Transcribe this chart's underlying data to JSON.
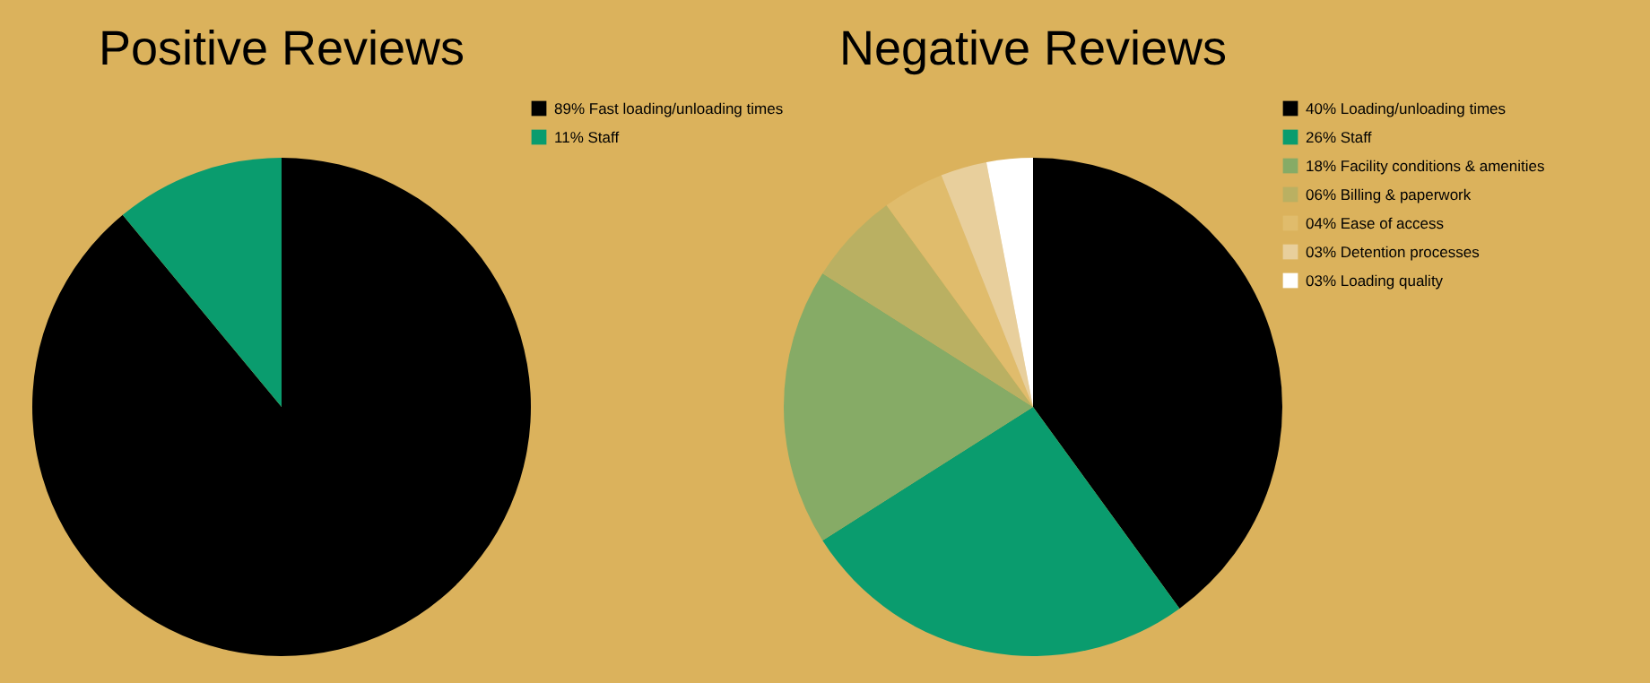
{
  "chart_data": [
    {
      "type": "pie",
      "title": "Positive Reviews",
      "categories": [
        "89% Fast loading/unloading times",
        "11% Staff"
      ],
      "values": [
        89,
        11
      ],
      "colors": [
        "#000000",
        "#0a9c6e"
      ],
      "legend": "right"
    },
    {
      "type": "pie",
      "title": "Negative Reviews",
      "categories": [
        "40% Loading/unloading times",
        "26% Staff",
        "18% Facility conditions & amenities",
        "06% Billing & paperwork",
        "04% Ease of access",
        "03% Detention processes",
        "03% Loading quality"
      ],
      "values": [
        40,
        26,
        18,
        6,
        4,
        3,
        3
      ],
      "colors": [
        "#000000",
        "#0a9c6e",
        "#86ab66",
        "#bab062",
        "#e0bc6c",
        "#e8cf9c",
        "#ffffff"
      ],
      "legend": "right"
    }
  ]
}
